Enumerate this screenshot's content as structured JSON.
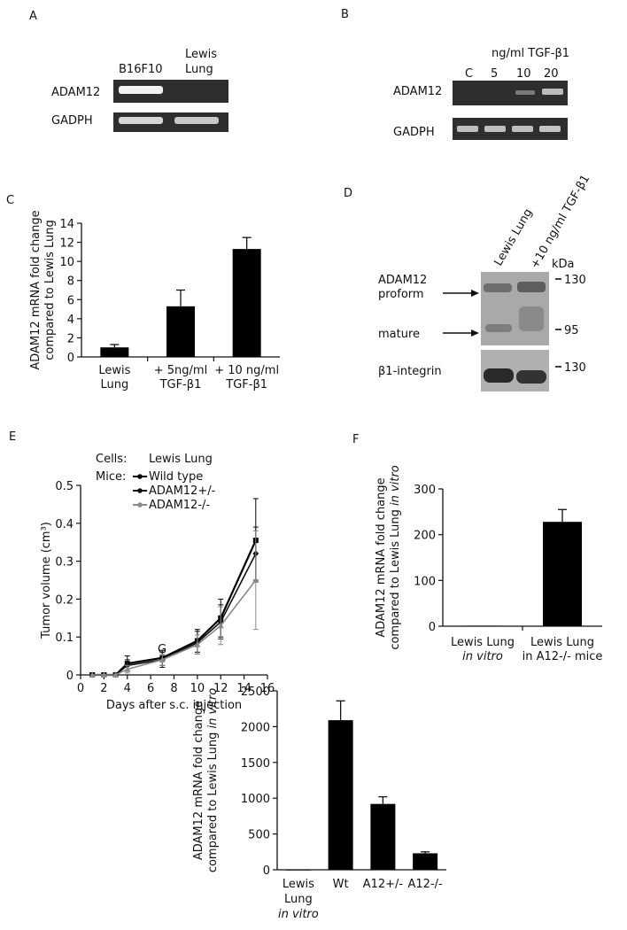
{
  "panels": {
    "A": {
      "letter": "A",
      "lanes": [
        "B16F10",
        "Lewis\nLung"
      ],
      "rows": [
        "ADAM12",
        "GADPH"
      ]
    },
    "B": {
      "letter": "B",
      "header": "ng/ml TGF-β1",
      "lanes": [
        "C",
        "5",
        "10",
        "20"
      ],
      "rows": [
        "ADAM12",
        "GADPH"
      ]
    },
    "D": {
      "letter": "D",
      "lanes": [
        "Lewis Lung",
        "+10 ng/ml TGF-β1"
      ],
      "kda_label": "kDa",
      "markers": [
        "130",
        "95",
        "130"
      ],
      "labels": [
        "ADAM12",
        "proform",
        "mature",
        "β1-integrin"
      ]
    },
    "E": {
      "letter": "E",
      "cells_label": "Cells:",
      "cells_value": "Lewis Lung",
      "mice_label": "Mice:"
    }
  },
  "colors": {
    "bar": "#000000",
    "wild_type": "#000000",
    "het": "#111111",
    "ko": "#8a8a8a",
    "gel_bg": "#2e2e2e"
  },
  "chart_data": [
    {
      "id": "C",
      "letter": "C",
      "type": "bar",
      "categories": [
        "Lewis\nLung",
        "+ 5ng/ml\nTGF-β1",
        "+ 10 ng/ml\nTGF-β1"
      ],
      "values": [
        1.0,
        5.3,
        11.3
      ],
      "errors": [
        0.3,
        1.7,
        1.2
      ],
      "ylabel": "ADAM12 mRNA fold change\ncompared to Lewis Lung",
      "ylim": [
        0,
        14
      ],
      "yticks": [
        0,
        2,
        4,
        6,
        8,
        10,
        12,
        14
      ]
    },
    {
      "id": "E",
      "letter": "E",
      "type": "line",
      "xlabel": "Days after s.c. injection",
      "ylabel": "Tumor volume (cm³)",
      "xlim": [
        0,
        16
      ],
      "ylim": [
        0,
        0.5
      ],
      "xticks": [
        0,
        2,
        4,
        6,
        8,
        10,
        12,
        14,
        16
      ],
      "yticks": [
        0,
        0.1,
        0.2,
        0.3,
        0.4,
        0.5
      ],
      "x": [
        1,
        2,
        3,
        4,
        7,
        10,
        12,
        15
      ],
      "series": [
        {
          "name": "Wild type",
          "values": [
            0,
            0,
            0,
            0.03,
            0.045,
            0.09,
            0.15,
            0.355
          ],
          "errors": [
            0,
            0,
            0,
            0.02,
            0.02,
            0.03,
            0.05,
            0.11
          ]
        },
        {
          "name": "ADAM12+/-",
          "values": [
            0,
            0,
            0,
            0.025,
            0.04,
            0.085,
            0.14,
            0.32
          ],
          "errors": [
            0,
            0,
            0,
            0.015,
            0.02,
            0.03,
            0.045,
            0.07
          ]
        },
        {
          "name": "ADAM12-/-",
          "values": [
            0,
            0,
            0,
            0.015,
            0.04,
            0.08,
            0.13,
            0.25
          ],
          "errors": [
            0,
            0,
            0,
            0.01,
            0.015,
            0.025,
            0.05,
            0.13
          ]
        }
      ]
    },
    {
      "id": "F",
      "letter": "F",
      "type": "bar",
      "categories": [
        "Lewis Lung\nin vitro",
        "Lewis Lung\nin A12-/- mice"
      ],
      "italic": [
        true,
        false
      ],
      "values": [
        1,
        228
      ],
      "errors": [
        0,
        27
      ],
      "ylabel": "ADAM12 mRNA fold change\ncompared to Lewis Lung in vitro",
      "ylim": [
        0,
        300
      ],
      "yticks": [
        0,
        100,
        200,
        300
      ]
    },
    {
      "id": "G",
      "letter": "G",
      "type": "bar",
      "categories": [
        "Lewis\nLung\nin vitro",
        "Wt",
        "A12+/-",
        "A12-/-"
      ],
      "italic_last_line": [
        true,
        false,
        false,
        false
      ],
      "values": [
        1,
        2090,
        920,
        230
      ],
      "errors": [
        0,
        270,
        100,
        20
      ],
      "ylabel": "ADAM12 mRNA fold change\ncompared to Lewis Lung in vitro",
      "ylim": [
        0,
        2500
      ],
      "yticks": [
        0,
        500,
        1000,
        1500,
        2000,
        2500
      ]
    }
  ]
}
